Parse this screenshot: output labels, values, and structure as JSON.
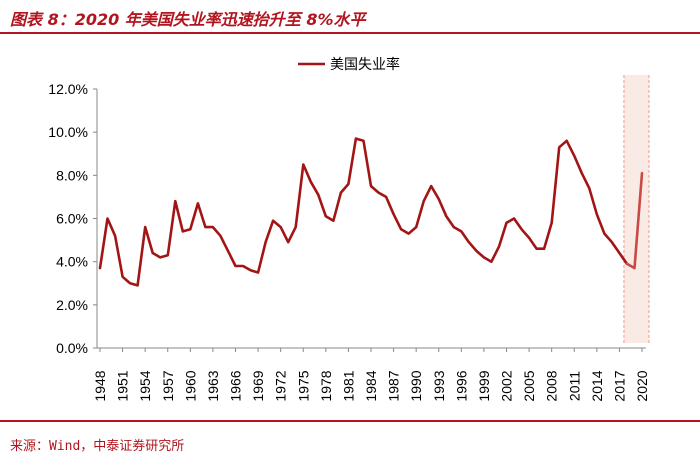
{
  "header": {
    "title": "图表 8：2020 年美国失业率迅速抬升至 8%水平"
  },
  "footer": {
    "source": "来源：Wind，中泰证券研究所"
  },
  "colors": {
    "accent": "#b2151f",
    "line": "#a31515",
    "highlight": "#f6d9d2"
  },
  "chart_data": {
    "type": "line",
    "title": "",
    "xlabel": "",
    "ylabel": "",
    "ylim": [
      0,
      12
    ],
    "y_ticks": [
      "0.0%",
      "2.0%",
      "4.0%",
      "6.0%",
      "8.0%",
      "10.0%",
      "12.0%"
    ],
    "y_tick_values": [
      0,
      2,
      4,
      6,
      8,
      10,
      12
    ],
    "x_tick_labels": [
      "1948",
      "1951",
      "1954",
      "1957",
      "1960",
      "1963",
      "1966",
      "1969",
      "1972",
      "1975",
      "1978",
      "1981",
      "1984",
      "1987",
      "1990",
      "1993",
      "1996",
      "1999",
      "2002",
      "2005",
      "2008",
      "2011",
      "2014",
      "2017",
      "2020"
    ],
    "legend": {
      "position": "top-center",
      "entries": [
        "美国失业率"
      ]
    },
    "highlight_range": [
      2018,
      2020
    ],
    "grid": false,
    "series": [
      {
        "name": "美国失业率",
        "x": [
          1948,
          1949,
          1950,
          1951,
          1952,
          1953,
          1954,
          1955,
          1956,
          1957,
          1958,
          1959,
          1960,
          1961,
          1962,
          1963,
          1964,
          1965,
          1966,
          1967,
          1968,
          1969,
          1970,
          1971,
          1972,
          1973,
          1974,
          1975,
          1976,
          1977,
          1978,
          1979,
          1980,
          1981,
          1982,
          1983,
          1984,
          1985,
          1986,
          1987,
          1988,
          1989,
          1990,
          1991,
          1992,
          1993,
          1994,
          1995,
          1996,
          1997,
          1998,
          1999,
          2000,
          2001,
          2002,
          2003,
          2004,
          2005,
          2006,
          2007,
          2008,
          2009,
          2010,
          2011,
          2012,
          2013,
          2014,
          2015,
          2016,
          2017,
          2018,
          2019,
          2020
        ],
        "values": [
          3.7,
          6.0,
          5.2,
          3.3,
          3.0,
          2.9,
          5.6,
          4.4,
          4.2,
          4.3,
          6.8,
          5.4,
          5.5,
          6.7,
          5.6,
          5.6,
          5.2,
          4.5,
          3.8,
          3.8,
          3.6,
          3.5,
          4.9,
          5.9,
          5.6,
          4.9,
          5.6,
          8.5,
          7.7,
          7.1,
          6.1,
          5.9,
          7.2,
          7.6,
          9.7,
          9.6,
          7.5,
          7.2,
          7.0,
          6.2,
          5.5,
          5.3,
          5.6,
          6.8,
          7.5,
          6.9,
          6.1,
          5.6,
          5.4,
          4.9,
          4.5,
          4.2,
          4.0,
          4.7,
          5.8,
          6.0,
          5.5,
          5.1,
          4.6,
          4.6,
          5.8,
          9.3,
          9.6,
          8.9,
          8.1,
          7.4,
          6.2,
          5.3,
          4.9,
          4.4,
          3.9,
          3.7,
          8.1
        ]
      }
    ]
  }
}
